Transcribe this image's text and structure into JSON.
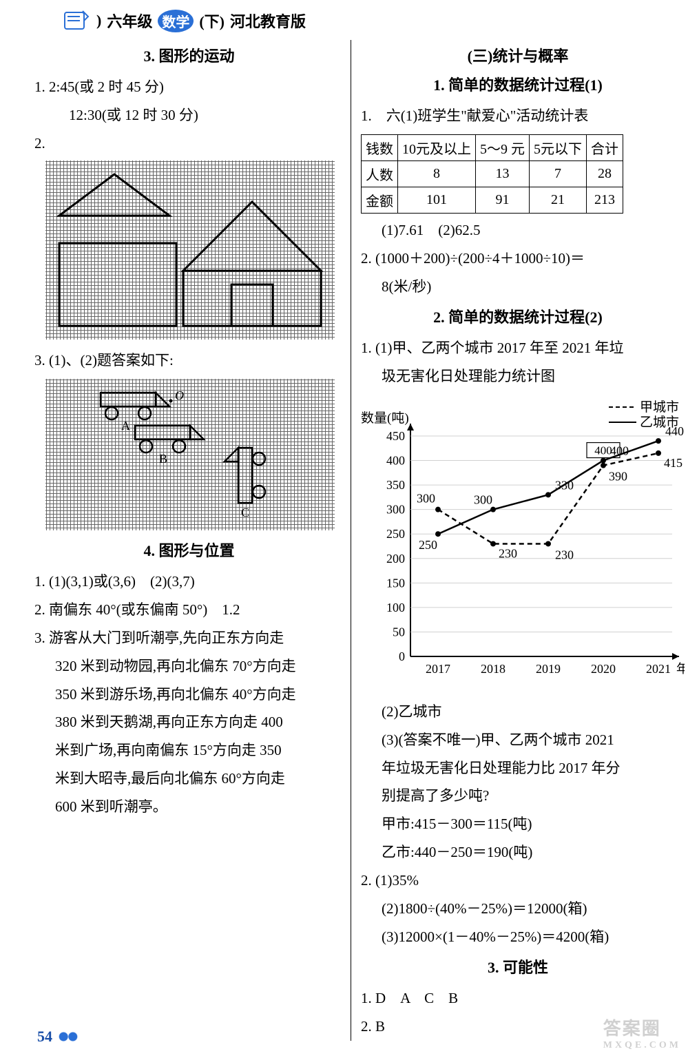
{
  "header": {
    "grade": "六年级",
    "subject": "数学",
    "volume": "(下)",
    "edition": "河北教育版"
  },
  "page_number": "54",
  "watermark": {
    "main": "答案圈",
    "sub": "MXQE.COM"
  },
  "left": {
    "sec3_title": "3. 图形的运动",
    "q1a": "1. 2:45(或 2 时 45 分)",
    "q1b": "12:30(或 12 时 30 分)",
    "q2": "2.",
    "q3": "3. (1)、(2)题答案如下:",
    "sec4_title": "4. 图形与位置",
    "s4_q1": "1. (1)(3,1)或(3,6)　(2)(3,7)",
    "s4_q2": "2. 南偏东 40°(或东偏南 50°)　1.2",
    "s4_q3a": "3. 游客从大门到听潮亭,先向正东方向走",
    "s4_q3b": "320 米到动物园,再向北偏东 70°方向走",
    "s4_q3c": "350 米到游乐场,再向北偏东 40°方向走",
    "s4_q3d": "380 米到天鹅湖,再向正东方向走 400",
    "s4_q3e": "米到广场,再向南偏东 15°方向走 350",
    "s4_q3f": "米到大昭寺,最后向北偏东 60°方向走",
    "s4_q3g": "600 米到听潮亭。"
  },
  "right": {
    "unit_title": "(三)统计与概率",
    "sec1_title": "1. 简单的数据统计过程(1)",
    "r1_q1_caption": "1.　六(1)班学生\"献爱心\"活动统计表",
    "table": {
      "cols": [
        "钱数",
        "10元及以上",
        "5～9 元",
        "5元以下",
        "合计"
      ],
      "rows": [
        [
          "人数",
          "8",
          "13",
          "7",
          "28"
        ],
        [
          "金额",
          "101",
          "91",
          "21",
          "213"
        ]
      ]
    },
    "r1_q1_ans": "(1)7.61　(2)62.5",
    "r1_q2a": "2. (1000＋200)÷(200÷4＋1000÷10)＝",
    "r1_q2b": "8(米/秒)",
    "sec2_title": "2. 简单的数据统计过程(2)",
    "r2_q1a": "1. (1)甲、乙两个城市 2017 年至 2021 年垃",
    "r2_q1b": "圾无害化日处理能力统计图",
    "chart": {
      "ylabel": "数量(吨)",
      "xlabel_suffix": "年份",
      "legend": {
        "a": "甲城市",
        "b": "乙城市"
      },
      "legend_dash_a": true,
      "y_max": 450,
      "y_step": 50,
      "years": [
        "2017",
        "2018",
        "2019",
        "2020",
        "2021"
      ],
      "series_a": [
        300,
        230,
        230,
        390,
        415
      ],
      "series_b": [
        250,
        300,
        330,
        400,
        440
      ],
      "labels_a": [
        "300",
        "230",
        "",
        "390",
        "415"
      ],
      "labels_b": [
        "250",
        "300",
        "330",
        "400",
        "440"
      ],
      "extra_230": "230",
      "axis_color": "#000000",
      "grid_color": "#d0d0d0",
      "line_a_color": "#000000",
      "line_b_color": "#000000"
    },
    "r2_q1c": "(2)乙城市",
    "r2_q1d": "(3)(答案不唯一)甲、乙两个城市 2021",
    "r2_q1e": "年垃圾无害化日处理能力比 2017 年分",
    "r2_q1f": "别提高了多少吨?",
    "r2_q1g": "甲市:415－300＝115(吨)",
    "r2_q1h": "乙市:440－250＝190(吨)",
    "r2_q2a": "2. (1)35%",
    "r2_q2b": "(2)1800÷(40%－25%)＝12000(箱)",
    "r2_q2c": "(3)12000×(1－40%－25%)＝4200(箱)",
    "sec3_title": "3. 可能性",
    "r3_q1": "1. D　A　C　B",
    "r3_q2": "2. B"
  }
}
